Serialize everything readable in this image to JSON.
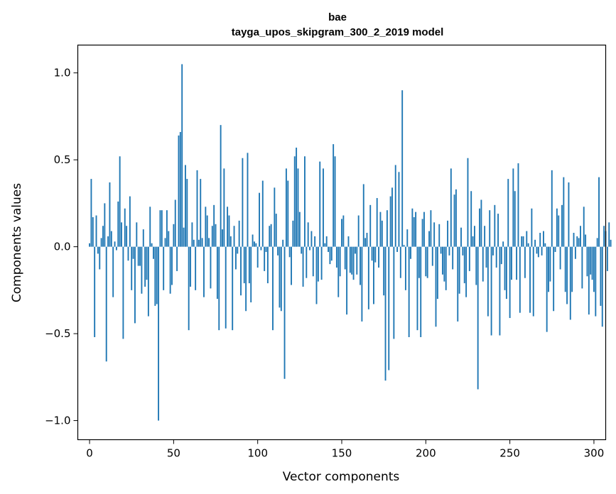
{
  "chart_data": {
    "type": "bar",
    "title": "bae",
    "subtitle": "tayga_upos_skipgram_300_2_2019 model",
    "xlabel": "Vector components",
    "ylabel": "Components values",
    "xlim": [
      -7,
      307
    ],
    "ylim": [
      -1.11,
      1.16
    ],
    "xticks": [
      0,
      50,
      100,
      150,
      200,
      250,
      300
    ],
    "xtick_labels": [
      "0",
      "50",
      "100",
      "150",
      "200",
      "250",
      "300"
    ],
    "yticks": [
      -1.0,
      -0.5,
      0.0,
      0.5,
      1.0
    ],
    "ytick_labels": [
      "−1.0",
      "−0.5",
      "0.0",
      "0.5",
      "1.0"
    ],
    "bar_color": "#1f77b4",
    "grid": false,
    "legend": "none",
    "values": [
      0.02,
      0.39,
      0.17,
      -0.52,
      0.18,
      -0.04,
      -0.13,
      0.05,
      0.12,
      0.25,
      -0.66,
      0.06,
      0.37,
      0.09,
      -0.29,
      0.03,
      -0.02,
      0.26,
      0.52,
      0.14,
      -0.53,
      0.22,
      0.12,
      -0.08,
      0.29,
      -0.25,
      -0.07,
      -0.44,
      0.14,
      -0.11,
      -0.11,
      -0.27,
      0.1,
      -0.23,
      -0.19,
      -0.4,
      0.23,
      0.02,
      -0.07,
      -0.34,
      -0.33,
      -1.0,
      0.21,
      0.21,
      -0.25,
      0.05,
      0.21,
      0.09,
      -0.27,
      -0.22,
      0.13,
      0.27,
      -0.14,
      0.64,
      0.66,
      1.05,
      0.11,
      0.47,
      0.39,
      -0.48,
      -0.23,
      0.14,
      0.04,
      -0.25,
      0.44,
      0.04,
      0.39,
      0.05,
      -0.29,
      0.23,
      0.18,
      0.05,
      -0.24,
      0.12,
      0.24,
      0.13,
      -0.3,
      -0.48,
      0.7,
      0.1,
      0.45,
      -0.47,
      0.23,
      0.18,
      0.06,
      -0.48,
      0.12,
      -0.13,
      -0.04,
      0.15,
      -0.28,
      0.51,
      -0.21,
      -0.37,
      0.54,
      -0.21,
      -0.32,
      0.07,
      0.03,
      0.02,
      -0.12,
      0.31,
      -0.02,
      0.38,
      -0.14,
      -0.03,
      -0.21,
      0.12,
      0.13,
      -0.48,
      0.34,
      0.19,
      -0.05,
      -0.35,
      -0.37,
      0.04,
      -0.76,
      0.45,
      0.38,
      -0.06,
      -0.22,
      0.15,
      0.52,
      0.57,
      0.45,
      0.2,
      -0.04,
      -0.23,
      0.52,
      -0.18,
      0.14,
      -0.02,
      0.09,
      -0.17,
      0.06,
      -0.33,
      -0.2,
      0.49,
      -0.19,
      0.45,
      0.02,
      0.06,
      -0.03,
      -0.1,
      -0.08,
      0.59,
      0.52,
      -0.12,
      -0.29,
      -0.17,
      0.16,
      0.18,
      -0.13,
      -0.39,
      0.06,
      -0.15,
      -0.16,
      -0.19,
      -0.04,
      -0.16,
      0.18,
      -0.22,
      -0.43,
      0.36,
      0.05,
      0.08,
      -0.36,
      0.24,
      -0.08,
      -0.33,
      -0.09,
      0.28,
      -0.12,
      0.2,
      0.15,
      -0.28,
      -0.77,
      0.21,
      -0.71,
      0.29,
      0.34,
      -0.53,
      0.47,
      -0.03,
      0.43,
      -0.18,
      0.9,
      0.01,
      -0.25,
      0.1,
      -0.52,
      -0.07,
      0.22,
      0.17,
      0.2,
      -0.48,
      -0.18,
      -0.52,
      0.16,
      0.2,
      -0.17,
      -0.18,
      0.09,
      0.21,
      -0.11,
      0.14,
      -0.46,
      -0.3,
      0.13,
      -0.04,
      -0.16,
      -0.2,
      -0.25,
      0.15,
      -0.05,
      0.45,
      -0.13,
      0.3,
      0.33,
      -0.43,
      -0.27,
      0.11,
      -0.05,
      -0.21,
      -0.29,
      0.51,
      -0.14,
      0.32,
      0.06,
      0.12,
      -0.22,
      -0.82,
      0.22,
      0.27,
      -0.2,
      0.12,
      -0.12,
      -0.4,
      0.21,
      -0.51,
      -0.05,
      0.24,
      -0.12,
      0.19,
      -0.51,
      -0.1,
      0.03,
      -0.25,
      -0.3,
      0.39,
      -0.41,
      -0.19,
      0.45,
      0.32,
      -0.19,
      0.48,
      -0.38,
      0.06,
      0.06,
      -0.18,
      0.09,
      0.02,
      -0.38,
      0.22,
      -0.4,
      0.04,
      -0.04,
      -0.06,
      0.08,
      -0.05,
      0.09,
      0.02,
      -0.49,
      -0.26,
      -0.2,
      0.44,
      -0.37,
      -0.03,
      0.22,
      0.18,
      -0.13,
      0.24,
      0.4,
      -0.26,
      -0.33,
      0.37,
      -0.42,
      -0.26,
      0.08,
      -0.07,
      0.06,
      0.05,
      0.12,
      -0.24,
      0.23,
      0.07,
      -0.17,
      -0.39,
      -0.16,
      -0.19,
      -0.26,
      -0.4,
      0.05,
      0.4,
      -0.34,
      -0.46,
      0.12,
      0.09,
      -0.14,
      0.14,
      0.04
    ]
  }
}
